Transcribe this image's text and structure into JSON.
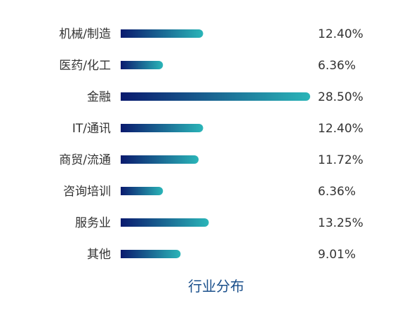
{
  "chart_data": {
    "type": "bar",
    "orientation": "horizontal",
    "title": "行业分布",
    "categories": [
      "机械/制造",
      "医药/化工",
      "金融",
      "IT/通讯",
      "商贸/流通",
      "咨询培训",
      "服务业",
      "其他"
    ],
    "values": [
      12.4,
      6.36,
      28.5,
      12.4,
      11.72,
      6.36,
      13.25,
      9.01
    ],
    "value_labels": [
      "12.40%",
      "6.36%",
      "28.50%",
      "12.40%",
      "11.72%",
      "6.36%",
      "13.25%",
      "9.01%"
    ],
    "unit": "%",
    "xlim": [
      0,
      28.5
    ],
    "grid": false,
    "legend": "none",
    "bar_gradient": [
      "#0a1a6e",
      "#2ab5b8"
    ]
  }
}
